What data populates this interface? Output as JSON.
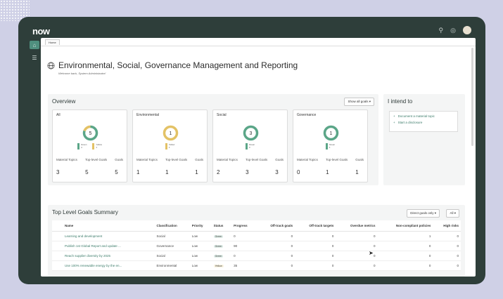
{
  "app": {
    "logo": "now",
    "tab": "Home"
  },
  "hero": {
    "title": "Environmental, Social, Governance Management and Reporting",
    "subtitle": "Welcome back, System Administrator!"
  },
  "overview": {
    "title": "Overview",
    "filter_button": "Show all goals ▾",
    "cards": [
      {
        "title": "All",
        "count": "5",
        "legend": [
          {
            "label": "Green",
            "value": "4",
            "color": "#5ba688"
          },
          {
            "label": "Yellow",
            "value": "1",
            "color": "#e3c266"
          }
        ],
        "stats": [
          {
            "label": "Material Topics",
            "value": "3"
          },
          {
            "label": "Top-level Goals",
            "value": "5"
          },
          {
            "label": "Goals",
            "value": "5"
          }
        ]
      },
      {
        "title": "Environmental",
        "count": "1",
        "legend": [
          {
            "label": "Yellow",
            "value": "1",
            "color": "#e3c266"
          }
        ],
        "stats": [
          {
            "label": "Material Topics",
            "value": "1"
          },
          {
            "label": "Top-level Goals",
            "value": "1"
          },
          {
            "label": "Goals",
            "value": "1"
          }
        ]
      },
      {
        "title": "Social",
        "count": "3",
        "legend": [
          {
            "label": "Green",
            "value": "3",
            "color": "#5ba688"
          }
        ],
        "stats": [
          {
            "label": "Material Topics",
            "value": "2"
          },
          {
            "label": "Top-level Goals",
            "value": "3"
          },
          {
            "label": "Goals",
            "value": "3"
          }
        ]
      },
      {
        "title": "Governance",
        "count": "1",
        "legend": [
          {
            "label": "Green",
            "value": "1",
            "color": "#5ba688"
          }
        ],
        "stats": [
          {
            "label": "Material Topics",
            "value": "0"
          },
          {
            "label": "Top-level Goals",
            "value": "1"
          },
          {
            "label": "Goals",
            "value": "1"
          }
        ]
      }
    ]
  },
  "intend": {
    "title": "I intend to",
    "links": [
      "Document a material topic",
      "Start a disclosure"
    ]
  },
  "goals": {
    "title": "Top Level Goals Summary",
    "filter_button": "Direct goals only ▾",
    "all_button": "All ▾",
    "columns": [
      "Name",
      "Classification",
      "Priority",
      "Status",
      "Progress",
      "Off-track goals",
      "Off-track targets",
      "Overdue metrics",
      "Non-compliant policies",
      "High risks"
    ],
    "rows": [
      {
        "name": "Learning and development",
        "classification": "Social",
        "priority": "Low",
        "status": "Green",
        "progress": "0",
        "off_goals": "0",
        "off_targets": "0",
        "overdue": "0",
        "noncompliant": "1",
        "risks": "0"
      },
      {
        "name": "Publish 1st Global Report and update ...",
        "classification": "Governance",
        "priority": "Low",
        "status": "Green",
        "progress": "90",
        "off_goals": "0",
        "off_targets": "0",
        "overdue": "0",
        "noncompliant": "0",
        "risks": "0"
      },
      {
        "name": "Reach supplier diversity by 2025",
        "classification": "Social",
        "priority": "Low",
        "status": "Green",
        "progress": "0",
        "off_goals": "0",
        "off_targets": "0",
        "overdue": "0",
        "noncompliant": "0",
        "risks": "0"
      },
      {
        "name": "Use 100% renewable energy by the en...",
        "classification": "Environmental",
        "priority": "Low",
        "status": "Yellow",
        "progress": "35",
        "off_goals": "0",
        "off_targets": "0",
        "overdue": "0",
        "noncompliant": "0",
        "risks": "0"
      }
    ]
  },
  "colors": {
    "green": "#5ba688",
    "yellow": "#e3c266",
    "link": "#3c7c6a"
  }
}
